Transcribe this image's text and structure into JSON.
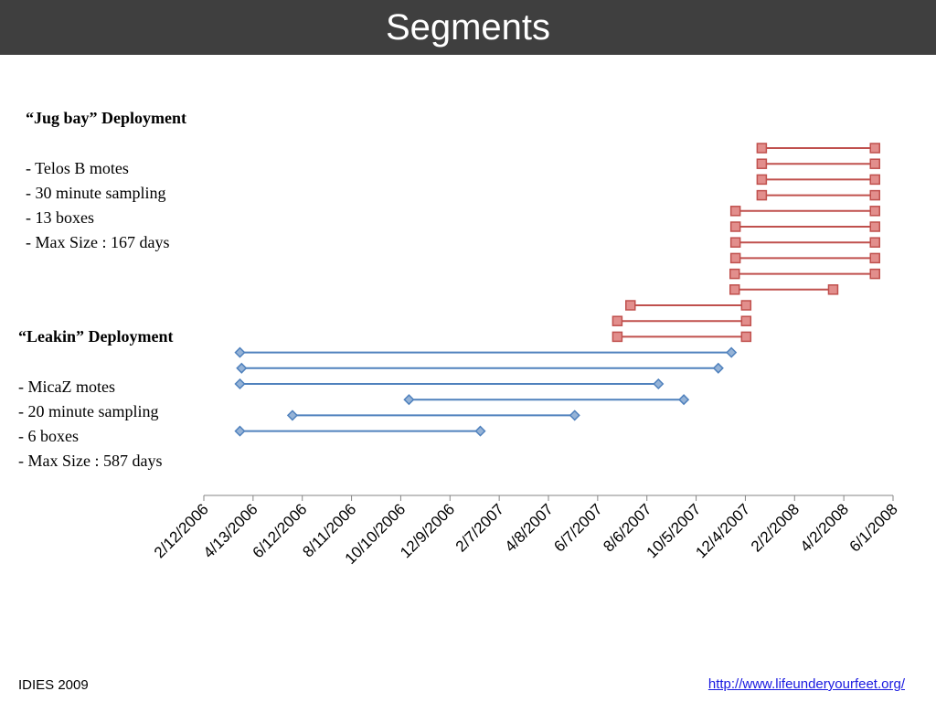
{
  "slide": {
    "title": "Segments",
    "footer_left": "IDIES 2009",
    "footer_link": "http://www.lifeunderyourfeet.org/"
  },
  "jugbay": {
    "heading": "“Jug bay” Deployment",
    "lines": [
      "- Telos B motes",
      "- 30 minute sampling",
      "- 13 boxes",
      "- Max Size : 167 days"
    ]
  },
  "leakin": {
    "heading": "“Leakin” Deployment",
    "lines": [
      "- MicaZ motes",
      "- 20 minute sampling",
      "- 6 boxes",
      "- Max Size : 587 days"
    ]
  },
  "colors": {
    "jugbay_line": "#c0504d",
    "jugbay_marker": "#e28e8c",
    "leakin_line": "#4f81bd",
    "leakin_marker": "#95b3d7"
  },
  "chart_data": {
    "type": "line",
    "x_type": "date",
    "x_range": [
      "2006-02-12",
      "2008-06-01"
    ],
    "x_ticks": [
      "2/12/2006",
      "4/13/2006",
      "6/12/2006",
      "8/11/2006",
      "10/10/2006",
      "12/9/2006",
      "2/7/2007",
      "4/8/2007",
      "6/7/2007",
      "8/6/2007",
      "10/5/2007",
      "12/4/2007",
      "2/2/2008",
      "4/2/2008",
      "6/1/2008"
    ],
    "grid": false,
    "series": [
      {
        "group": "jugbay",
        "marker": "square",
        "segments": [
          {
            "start": "2007-12-24",
            "end": "2008-05-10"
          },
          {
            "start": "2007-12-24",
            "end": "2008-05-10"
          },
          {
            "start": "2007-12-24",
            "end": "2008-05-10"
          },
          {
            "start": "2007-12-24",
            "end": "2008-05-10"
          },
          {
            "start": "2007-11-22",
            "end": "2008-05-10"
          },
          {
            "start": "2007-11-22",
            "end": "2008-05-10"
          },
          {
            "start": "2007-11-22",
            "end": "2008-05-10"
          },
          {
            "start": "2007-11-22",
            "end": "2008-05-10"
          },
          {
            "start": "2007-11-21",
            "end": "2008-05-10"
          },
          {
            "start": "2007-11-21",
            "end": "2008-03-20"
          },
          {
            "start": "2007-07-17",
            "end": "2007-12-05"
          },
          {
            "start": "2007-07-01",
            "end": "2007-12-05"
          },
          {
            "start": "2007-07-01",
            "end": "2007-12-05"
          }
        ]
      },
      {
        "group": "leakin",
        "marker": "diamond",
        "segments": [
          {
            "start": "2006-03-28",
            "end": "2007-11-17"
          },
          {
            "start": "2006-03-30",
            "end": "2007-11-01"
          },
          {
            "start": "2006-03-28",
            "end": "2007-08-20"
          },
          {
            "start": "2006-10-20",
            "end": "2007-09-20"
          },
          {
            "start": "2006-05-31",
            "end": "2007-05-10"
          },
          {
            "start": "2006-03-28",
            "end": "2007-01-15"
          }
        ]
      }
    ]
  }
}
